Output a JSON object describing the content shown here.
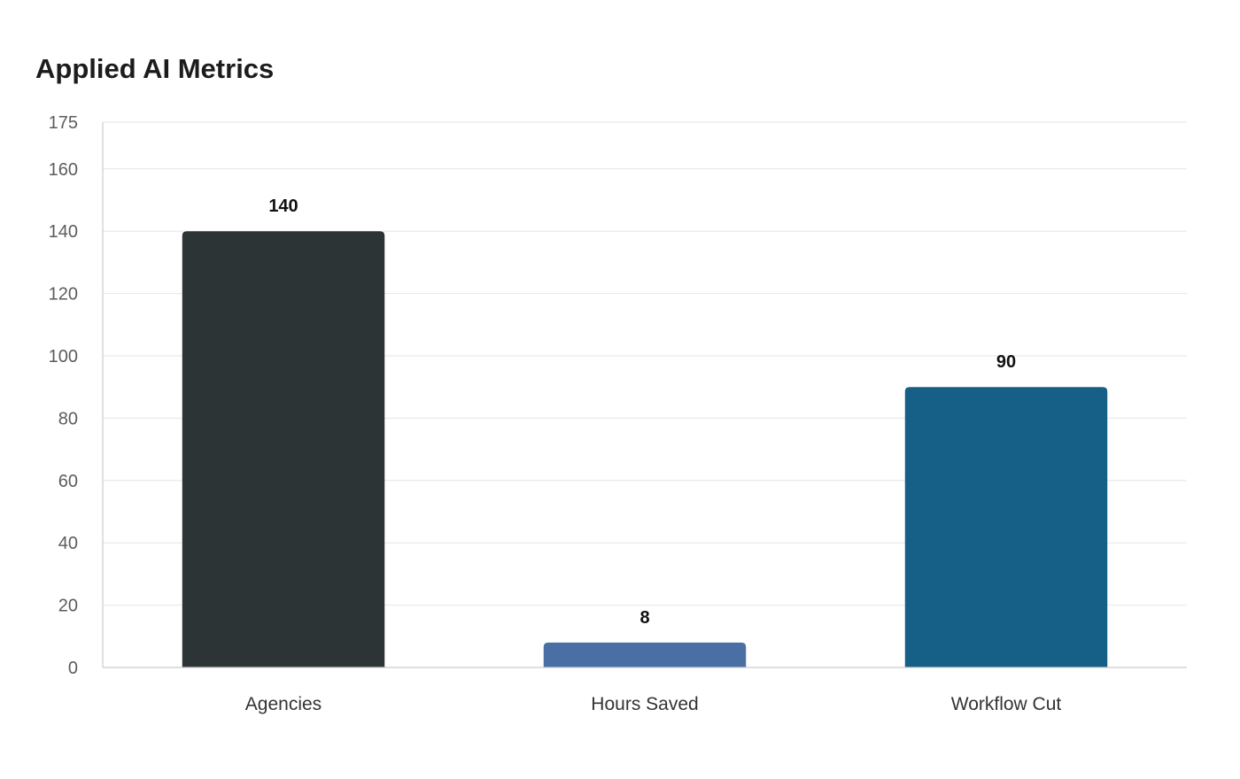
{
  "chart_data": {
    "type": "bar",
    "title": "Applied AI Metrics",
    "categories": [
      "Agencies",
      "Hours Saved",
      "Workflow Cut"
    ],
    "values": [
      140,
      8,
      90
    ],
    "colors": [
      "#2d3436",
      "#4a6fa5",
      "#166088"
    ],
    "yticks": [
      0,
      20,
      40,
      60,
      80,
      100,
      120,
      140,
      160,
      175
    ],
    "ylim": [
      0,
      175
    ],
    "xlabel": "",
    "ylabel": "",
    "grid": true,
    "data_labels": true
  }
}
